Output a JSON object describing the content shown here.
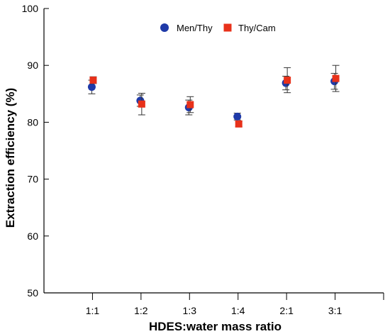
{
  "chart_data": {
    "type": "scatter",
    "title": "",
    "xlabel": "HDES:water mass ratio",
    "ylabel": "Extraction efficiency (%)",
    "categories": [
      "1:1",
      "1:2",
      "1:3",
      "1:4",
      "2:1",
      "3:1"
    ],
    "ylim": [
      50,
      100
    ],
    "yticks": [
      50,
      60,
      70,
      80,
      90,
      100
    ],
    "grid": false,
    "legend_position": "top-center",
    "series": [
      {
        "name": "Men/Thy",
        "marker": "circle",
        "color": "#1f3aa8",
        "values": [
          86.2,
          83.8,
          82.6,
          81.0,
          86.9,
          87.2
        ],
        "error": [
          1.2,
          1.0,
          1.3,
          0.6,
          1.2,
          1.4
        ]
      },
      {
        "name": "Thy/Cam",
        "marker": "square",
        "color": "#e8311a",
        "values": [
          87.4,
          83.2,
          83.1,
          79.7,
          87.4,
          87.7
        ],
        "error": [
          0.6,
          1.9,
          1.4,
          0.5,
          2.2,
          2.3
        ]
      }
    ]
  }
}
